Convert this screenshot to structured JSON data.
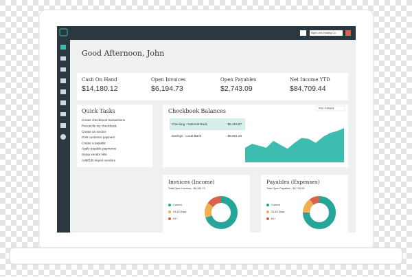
{
  "header": {
    "company": "Eight Lens Holding Co.",
    "greeting": "Good Afternoon, John"
  },
  "stats": [
    {
      "label": "Cash On Hand",
      "value": "$14,180.12"
    },
    {
      "label": "Open Invoices",
      "value": "$6,194.73"
    },
    {
      "label": "Open Payables",
      "value": "$2,743.09"
    },
    {
      "label": "Net Income YTD",
      "value": "$84,709.44"
    }
  ],
  "quick_tasks": {
    "title": "Quick Tasks",
    "items": [
      "Create checkbook transactions",
      "Reconcile my checkbook",
      "Create an invoice",
      "Post customer payment",
      "Create a payable",
      "Apply payable payments",
      "Setup vendor lists",
      "Add/Edit import vendors"
    ]
  },
  "checkbook": {
    "title": "Checkbook Balances",
    "period": "Prior 4 Weeks",
    "accounts": [
      {
        "name": "Checking - National Bank",
        "balance": "$5,418.87"
      },
      {
        "name": "Savings - Local Bank",
        "balance": "$8,561.25"
      }
    ],
    "trend": {
      "values": [
        30,
        38,
        34,
        30,
        44,
        36,
        28,
        40,
        50,
        48,
        40,
        52,
        60,
        64,
        70
      ],
      "ylim": [
        0,
        100
      ],
      "color": "#3dbdb0"
    }
  },
  "invoices": {
    "title": "Invoices (Income)",
    "total": "Total Open Invoices - $6,194.73",
    "legend": [
      "Current",
      "31-60 Days",
      "61+"
    ],
    "values": [
      70,
      15,
      15
    ],
    "colors": [
      "#26a69a",
      "#f0b050",
      "#d9624b"
    ]
  },
  "payables": {
    "title": "Payables (Expenses)",
    "total": "Total Open Payables - $2,743.09",
    "legend": [
      "Current",
      "31-60 Days",
      "61+"
    ],
    "values": [
      75,
      15,
      10
    ],
    "colors": [
      "#26a69a",
      "#f0b050",
      "#d9624b"
    ]
  }
}
